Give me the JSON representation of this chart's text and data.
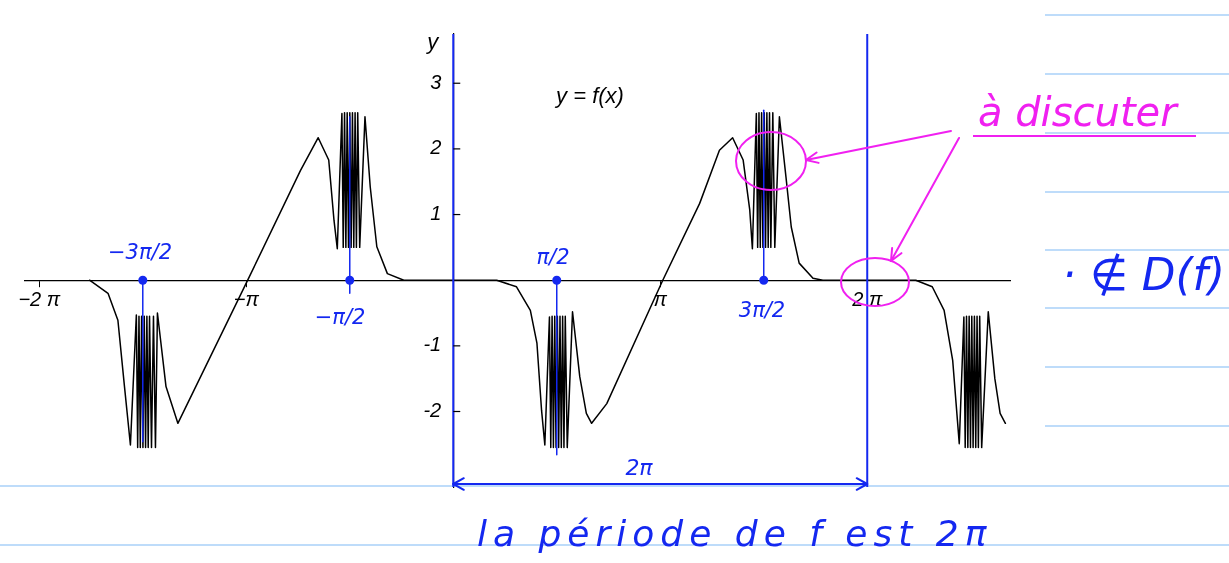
{
  "chart_data": {
    "type": "line",
    "ylabel": "y",
    "xlim": [
      -6.5,
      8.45
    ],
    "ylim": [
      -3.15,
      3.75
    ],
    "xticks": [
      {
        "value": -6.2832,
        "label": "−2 π"
      },
      {
        "value": -3.1416,
        "label": "−π"
      },
      {
        "value": 3.1416,
        "label": "π"
      },
      {
        "value": 6.2832,
        "label": "2 π"
      }
    ],
    "yticks": [
      -2,
      -1,
      1,
      2,
      3
    ],
    "marker": "none",
    "series": [
      {
        "color": "#000000",
        "x": [
          -5.52,
          -5.24,
          -5.09,
          -4.99,
          -4.9,
          -4.81,
          -4.79,
          -4.77,
          -4.75,
          -4.73,
          -4.71,
          -4.69,
          -4.67,
          -4.65,
          -4.63,
          -4.61,
          -4.58,
          -4.55,
          -4.52,
          -4.49,
          -4.36,
          -4.18,
          -3.12,
          -2.32,
          -2.05,
          -1.89,
          -1.81,
          -1.76,
          -1.69,
          -1.67,
          -1.65,
          -1.63,
          -1.61,
          -1.59,
          -1.57,
          -1.55,
          -1.53,
          -1.51,
          -1.49,
          -1.47,
          -1.45,
          -1.42,
          -1.34,
          -1.26,
          -1.16,
          -1.0,
          -0.75,
          0.66,
          0.96,
          1.17,
          1.27,
          1.34,
          1.39,
          1.46,
          1.48,
          1.5,
          1.52,
          1.54,
          1.56,
          1.58,
          1.6,
          1.62,
          1.64,
          1.66,
          1.68,
          1.7,
          1.73,
          1.81,
          1.92,
          2.02,
          2.1,
          2.33,
          3.18,
          3.74,
          4.04,
          4.24,
          4.4,
          4.5,
          4.54,
          4.6,
          4.62,
          4.64,
          4.66,
          4.68,
          4.7,
          4.72,
          4.74,
          4.76,
          4.78,
          4.8,
          4.82,
          4.85,
          4.88,
          4.95,
          5.05,
          5.13,
          5.25,
          5.46,
          5.61,
          7.02,
          7.27,
          7.45,
          7.58,
          7.68,
          7.75,
          7.77,
          7.79,
          7.81,
          7.83,
          7.85,
          7.87,
          7.89,
          7.91,
          7.93,
          7.95,
          7.97,
          7.99,
          8.02,
          8.12,
          8.22,
          8.3,
          8.38
        ],
        "values": [
          0,
          -0.2,
          -0.61,
          -1.62,
          -2.51,
          -0.53,
          -2.55,
          -0.55,
          -2.55,
          -0.55,
          -2.55,
          -0.55,
          -2.55,
          -0.55,
          -2.55,
          -0.55,
          -2.55,
          -0.55,
          -2.55,
          -0.5,
          -1.62,
          -2.18,
          0,
          1.67,
          2.17,
          1.83,
          0.91,
          0.48,
          2.54,
          0.5,
          2.55,
          0.5,
          2.55,
          0.5,
          2.55,
          0.5,
          2.55,
          0.5,
          2.55,
          0.5,
          2.55,
          0.5,
          2.49,
          1.42,
          0.51,
          0.1,
          0,
          0,
          -0.1,
          -0.46,
          -0.96,
          -1.98,
          -2.51,
          -0.56,
          -2.55,
          -0.55,
          -2.55,
          -0.55,
          -2.55,
          -0.55,
          -2.55,
          -0.55,
          -2.55,
          -0.55,
          -2.55,
          -0.55,
          -2.55,
          -0.48,
          -1.47,
          -2.03,
          -2.18,
          -1.88,
          0,
          1.17,
          1.98,
          2.17,
          1.83,
          1.07,
          0.48,
          2.54,
          0.5,
          2.55,
          0.5,
          2.55,
          0.5,
          2.55,
          0.5,
          2.55,
          0.5,
          2.55,
          0.5,
          2.55,
          0.5,
          2.49,
          1.57,
          0.81,
          0.26,
          0.03,
          0,
          0,
          -0.1,
          -0.46,
          -1.22,
          -2.49,
          -0.56,
          -2.55,
          -0.55,
          -2.55,
          -0.55,
          -2.55,
          -0.55,
          -2.55,
          -0.55,
          -2.55,
          -0.55,
          -2.55,
          -0.55,
          -2.55,
          -0.48,
          -1.5,
          -2.03,
          -2.18
        ]
      },
      {
        "type": "line",
        "color": "#1428f0",
        "x": [
          -4.7124,
          -4.7124
        ],
        "values": [
          0,
          -2.46
        ]
      },
      {
        "type": "line",
        "color": "#1428f0",
        "x": [
          -1.5708,
          -1.5708
        ],
        "values": [
          -0.2,
          2.49
        ]
      },
      {
        "type": "line",
        "color": "#1428f0",
        "x": [
          1.5708,
          1.5708
        ],
        "values": [
          0,
          -2.66
        ]
      },
      {
        "type": "line",
        "color": "#1428f0",
        "x": [
          4.7124,
          4.7124
        ],
        "values": [
          0,
          2.59
        ]
      },
      {
        "type": "scatter",
        "color": "#1428f0",
        "marker": "circle",
        "x": [
          -4.7124,
          -1.5708,
          1.5708,
          4.7124
        ],
        "values": [
          0,
          0,
          0,
          0
        ]
      }
    ],
    "ref_lines": [
      {
        "axis": "x",
        "value": 0,
        "color": "#1428f0",
        "line_style": "solid"
      },
      {
        "axis": "x",
        "value": 6.2832,
        "color": "#1428f0",
        "line_style": "solid"
      }
    ],
    "annotations": [
      "y = f(x)",
      "−3π/2",
      "−π/2",
      "π/2",
      "3π/2",
      "2π",
      "la période de f est 2π",
      "à discuter",
      "· ∉ D(f)"
    ]
  }
}
